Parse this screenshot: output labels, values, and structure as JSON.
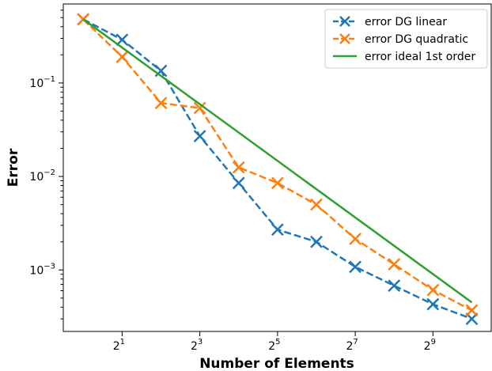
{
  "chart_data": {
    "type": "line",
    "xlabel": "Number of Elements",
    "ylabel": "Error",
    "xscale": "log2",
    "yscale": "log10",
    "xlim": [
      0.7,
      1448
    ],
    "ylim": [
      0.00022,
      0.7
    ],
    "grid": false,
    "legend_position": "top-right",
    "x_ticks": [
      {
        "value": 2,
        "base": "2",
        "exp": "1"
      },
      {
        "value": 8,
        "base": "2",
        "exp": "3"
      },
      {
        "value": 32,
        "base": "2",
        "exp": "5"
      },
      {
        "value": 128,
        "base": "2",
        "exp": "7"
      },
      {
        "value": 512,
        "base": "2",
        "exp": "9"
      }
    ],
    "y_ticks": [
      {
        "value": 0.1,
        "base": "10",
        "exp": "−1"
      },
      {
        "value": 0.01,
        "base": "10",
        "exp": "−2"
      },
      {
        "value": 0.001,
        "base": "10",
        "exp": "−3"
      }
    ],
    "series": [
      {
        "name": "error DG linear",
        "color": "#1f77b4",
        "linestyle": "dashed",
        "marker": "x",
        "x": [
          1,
          2,
          4,
          8,
          16,
          32,
          64,
          128,
          256,
          512,
          1024
        ],
        "y": [
          0.48,
          0.29,
          0.135,
          0.027,
          0.0085,
          0.0027,
          0.002,
          0.00108,
          0.00068,
          0.00043,
          0.0003
        ]
      },
      {
        "name": "error DG quadratic",
        "color": "#ff7f0e",
        "linestyle": "dashed",
        "marker": "x",
        "x": [
          1,
          2,
          4,
          8,
          16,
          32,
          64,
          128,
          256,
          512,
          1024
        ],
        "y": [
          0.48,
          0.19,
          0.061,
          0.054,
          0.0125,
          0.0085,
          0.005,
          0.00215,
          0.00115,
          0.00061,
          0.00037
        ]
      },
      {
        "name": "error ideal 1st order",
        "color": "#2ca02c",
        "linestyle": "solid",
        "marker": "none",
        "x": [
          1,
          1024
        ],
        "y": [
          0.48,
          0.00045
        ]
      }
    ]
  }
}
